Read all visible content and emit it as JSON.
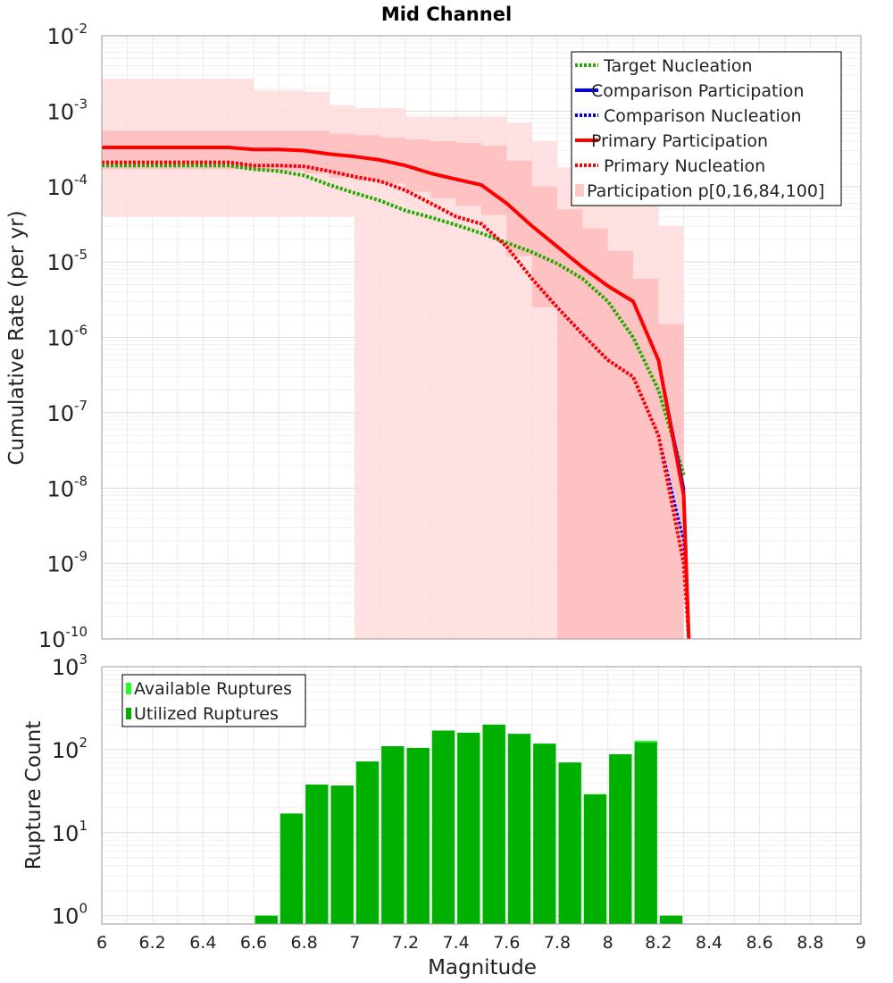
{
  "chart_data": [
    {
      "type": "line",
      "title": "Mid Channel",
      "xlabel": "",
      "ylabel": "Cumulative Rate (per yr)",
      "yscale": "log",
      "xlim": [
        6,
        9
      ],
      "ylim_exp": [
        -10,
        -2
      ],
      "y_tick_exponents": [
        -10,
        -9,
        -8,
        -7,
        -6,
        -5,
        -4,
        -3,
        -2
      ],
      "legend_position": "top-right",
      "legend": [
        {
          "label": "Target Nucleation",
          "color": "#22aa00",
          "style": "dotted"
        },
        {
          "label": "Comparison Participation",
          "color": "#0000ee",
          "style": "solid"
        },
        {
          "label": "Comparison Nucleation",
          "color": "#0000ee",
          "style": "dotted"
        },
        {
          "label": "Primary Participation",
          "color": "#ff0000",
          "style": "solid"
        },
        {
          "label": "Primary Nucleation",
          "color": "#ff0000",
          "style": "dotted"
        },
        {
          "label": "Participation p[0,16,84,100]",
          "color": "#ffc8c8",
          "style": "band"
        }
      ],
      "series": [
        {
          "name": "Target Nucleation",
          "color": "#22aa00",
          "dash": true,
          "width": 4,
          "x": [
            6.0,
            6.5,
            6.6,
            6.7,
            6.8,
            6.9,
            7.0,
            7.1,
            7.2,
            7.3,
            7.4,
            7.5,
            7.6,
            7.7,
            7.8,
            7.9,
            8.0,
            8.1,
            8.2,
            8.3
          ],
          "y": [
            0.00019,
            0.00019,
            0.00017,
            0.00016,
            0.00014,
            0.000105,
            8.2e-05,
            6.5e-05,
            4.8e-05,
            3.9e-05,
            3.1e-05,
            2.4e-05,
            1.8e-05,
            1.35e-05,
            9.5e-06,
            6e-06,
            3e-06,
            1e-06,
            2e-07,
            1.5e-08
          ]
        },
        {
          "name": "Comparison Nucleation",
          "color": "#0000ee",
          "dash": true,
          "width": 3,
          "x": [
            6.0,
            6.5,
            6.6,
            6.7,
            6.8,
            6.9,
            7.0,
            7.1,
            7.2,
            7.3,
            7.4,
            7.5,
            7.6,
            7.7,
            7.8,
            7.9,
            8.0,
            8.1,
            8.2,
            8.3,
            8.32
          ],
          "y": [
            0.00021,
            0.00021,
            0.00019,
            0.00019,
            0.000185,
            0.00016,
            0.000135,
            0.000118,
            8.9e-05,
            6e-05,
            4e-05,
            3.2e-05,
            1.6e-05,
            6e-06,
            2.5e-06,
            1.1e-06,
            5e-07,
            3e-07,
            5e-08,
            2e-09,
            1e-10
          ]
        },
        {
          "name": "Comparison Participation",
          "color": "#0000ee",
          "dash": false,
          "width": 3,
          "x": [
            6.0,
            6.5,
            6.6,
            6.7,
            6.8,
            6.9,
            7.0,
            7.1,
            7.2,
            7.3,
            7.4,
            7.5,
            7.6,
            7.7,
            7.8,
            7.9,
            8.0,
            8.1,
            8.2,
            8.3,
            8.32
          ],
          "y": [
            0.00033,
            0.00033,
            0.00031,
            0.00031,
            0.0003,
            0.00027,
            0.00025,
            0.000225,
            0.00019,
            0.00015,
            0.000125,
            0.000105,
            6e-05,
            3e-05,
            1.6e-05,
            8.5e-06,
            4.8e-06,
            3e-06,
            5e-07,
            1e-08,
            1e-10
          ]
        },
        {
          "name": "Primary Participation",
          "color": "#ff0000",
          "dash": false,
          "width": 4,
          "x": [
            6.0,
            6.5,
            6.6,
            6.7,
            6.8,
            6.9,
            7.0,
            7.1,
            7.2,
            7.3,
            7.4,
            7.5,
            7.6,
            7.7,
            7.8,
            7.9,
            8.0,
            8.1,
            8.2,
            8.3,
            8.32
          ],
          "y": [
            0.00033,
            0.00033,
            0.00031,
            0.00031,
            0.0003,
            0.00027,
            0.00025,
            0.000225,
            0.00019,
            0.00015,
            0.000125,
            0.000105,
            6e-05,
            3e-05,
            1.6e-05,
            8.5e-06,
            4.8e-06,
            3e-06,
            5e-07,
            8e-09,
            1e-10
          ]
        },
        {
          "name": "Primary Nucleation",
          "color": "#ff0000",
          "dash": true,
          "width": 4,
          "x": [
            6.0,
            6.5,
            6.6,
            6.7,
            6.8,
            6.9,
            7.0,
            7.1,
            7.2,
            7.3,
            7.4,
            7.5,
            7.6,
            7.7,
            7.8,
            7.9,
            8.0,
            8.1,
            8.2,
            8.3,
            8.32
          ],
          "y": [
            0.00021,
            0.00021,
            0.00019,
            0.00019,
            0.000185,
            0.00016,
            0.000135,
            0.000118,
            8.9e-05,
            6e-05,
            4e-05,
            3.2e-05,
            1.6e-05,
            6e-06,
            2.5e-06,
            1.1e-06,
            5e-07,
            3e-07,
            5e-08,
            1e-09,
            1e-10
          ]
        }
      ],
      "bands": [
        {
          "name": "p0-p100",
          "color": "#ffdcdc",
          "x": [
            6.0,
            6.5,
            6.6,
            6.7,
            6.8,
            6.9,
            7.0,
            7.1,
            7.2,
            7.3,
            7.4,
            7.5,
            7.6,
            7.7,
            7.8,
            7.9,
            8.0,
            8.1,
            8.2,
            8.3
          ],
          "upper": [
            0.0027,
            0.0027,
            0.0019,
            0.0019,
            0.0018,
            0.0012,
            0.0011,
            0.0011,
            0.00085,
            0.00085,
            0.00085,
            0.00085,
            0.0007,
            0.0004,
            0.00018,
            0.00012,
            8e-05,
            6e-05,
            3e-05,
            1.6e-05
          ],
          "lower": [
            4e-05,
            4e-05,
            4e-05,
            4e-05,
            4e-05,
            4e-05,
            1e-10,
            1e-10,
            1e-10,
            1e-10,
            1e-10,
            1e-10,
            1e-10,
            1e-10,
            1e-10,
            1e-10,
            1e-10,
            1e-10,
            1e-10,
            1e-10
          ]
        },
        {
          "name": "p16-p84",
          "color": "#ffbcbc",
          "x": [
            6.0,
            6.5,
            6.6,
            6.7,
            6.8,
            6.9,
            7.0,
            7.1,
            7.2,
            7.3,
            7.4,
            7.5,
            7.6,
            7.7,
            7.8,
            7.9,
            8.0,
            8.1,
            8.2,
            8.3
          ],
          "upper": [
            0.00055,
            0.00055,
            0.00055,
            0.00055,
            0.00055,
            0.0005,
            0.00048,
            0.00045,
            0.00042,
            0.0004,
            0.00038,
            0.00035,
            0.00022,
            0.0001,
            5e-05,
            2.8e-05,
            1.4e-05,
            6e-06,
            1.5e-06,
            2e-08
          ],
          "lower": [
            0.00017,
            0.00017,
            0.00016,
            0.00016,
            0.00015,
            0.00013,
            0.00012,
            0.00011,
            8.5e-05,
            7e-05,
            5.5e-05,
            4.2e-05,
            1.2e-05,
            2.5e-06,
            1e-10,
            1e-10,
            1e-10,
            1e-10,
            1e-10,
            1e-10
          ]
        }
      ]
    },
    {
      "type": "bar",
      "xlabel": "Magnitude",
      "ylabel": "Rupture Count",
      "yscale": "log",
      "xlim": [
        6,
        9
      ],
      "ylim_exp": [
        -0.1,
        3
      ],
      "y_tick_exponents": [
        0,
        1,
        2,
        3
      ],
      "x_ticks": [
        "6",
        "6.2",
        "6.4",
        "6.6",
        "6.8",
        "7",
        "7.2",
        "7.4",
        "7.6",
        "7.8",
        "8",
        "8.2",
        "8.4",
        "8.6",
        "8.8",
        "9"
      ],
      "legend_position": "top-left",
      "legend": [
        {
          "label": "Available Ruptures",
          "color": "#22ff22"
        },
        {
          "label": "Utilized Ruptures",
          "color": "#00b000"
        }
      ],
      "bin_width": 0.1,
      "bin_centers": [
        6.65,
        6.75,
        6.85,
        6.95,
        7.05,
        7.15,
        7.25,
        7.35,
        7.45,
        7.55,
        7.65,
        7.75,
        7.85,
        7.95,
        8.05,
        8.15,
        8.25
      ],
      "series": [
        {
          "name": "Available Ruptures",
          "color": "#22ff22",
          "values": [
            1,
            17,
            38,
            37,
            72,
            110,
            105,
            170,
            160,
            200,
            155,
            118,
            70,
            29,
            88,
            128,
            1
          ]
        },
        {
          "name": "Utilized Ruptures",
          "color": "#00b000",
          "values": [
            1,
            17,
            38,
            37,
            72,
            110,
            105,
            170,
            160,
            200,
            155,
            118,
            70,
            29,
            88,
            122,
            1
          ]
        }
      ]
    }
  ]
}
